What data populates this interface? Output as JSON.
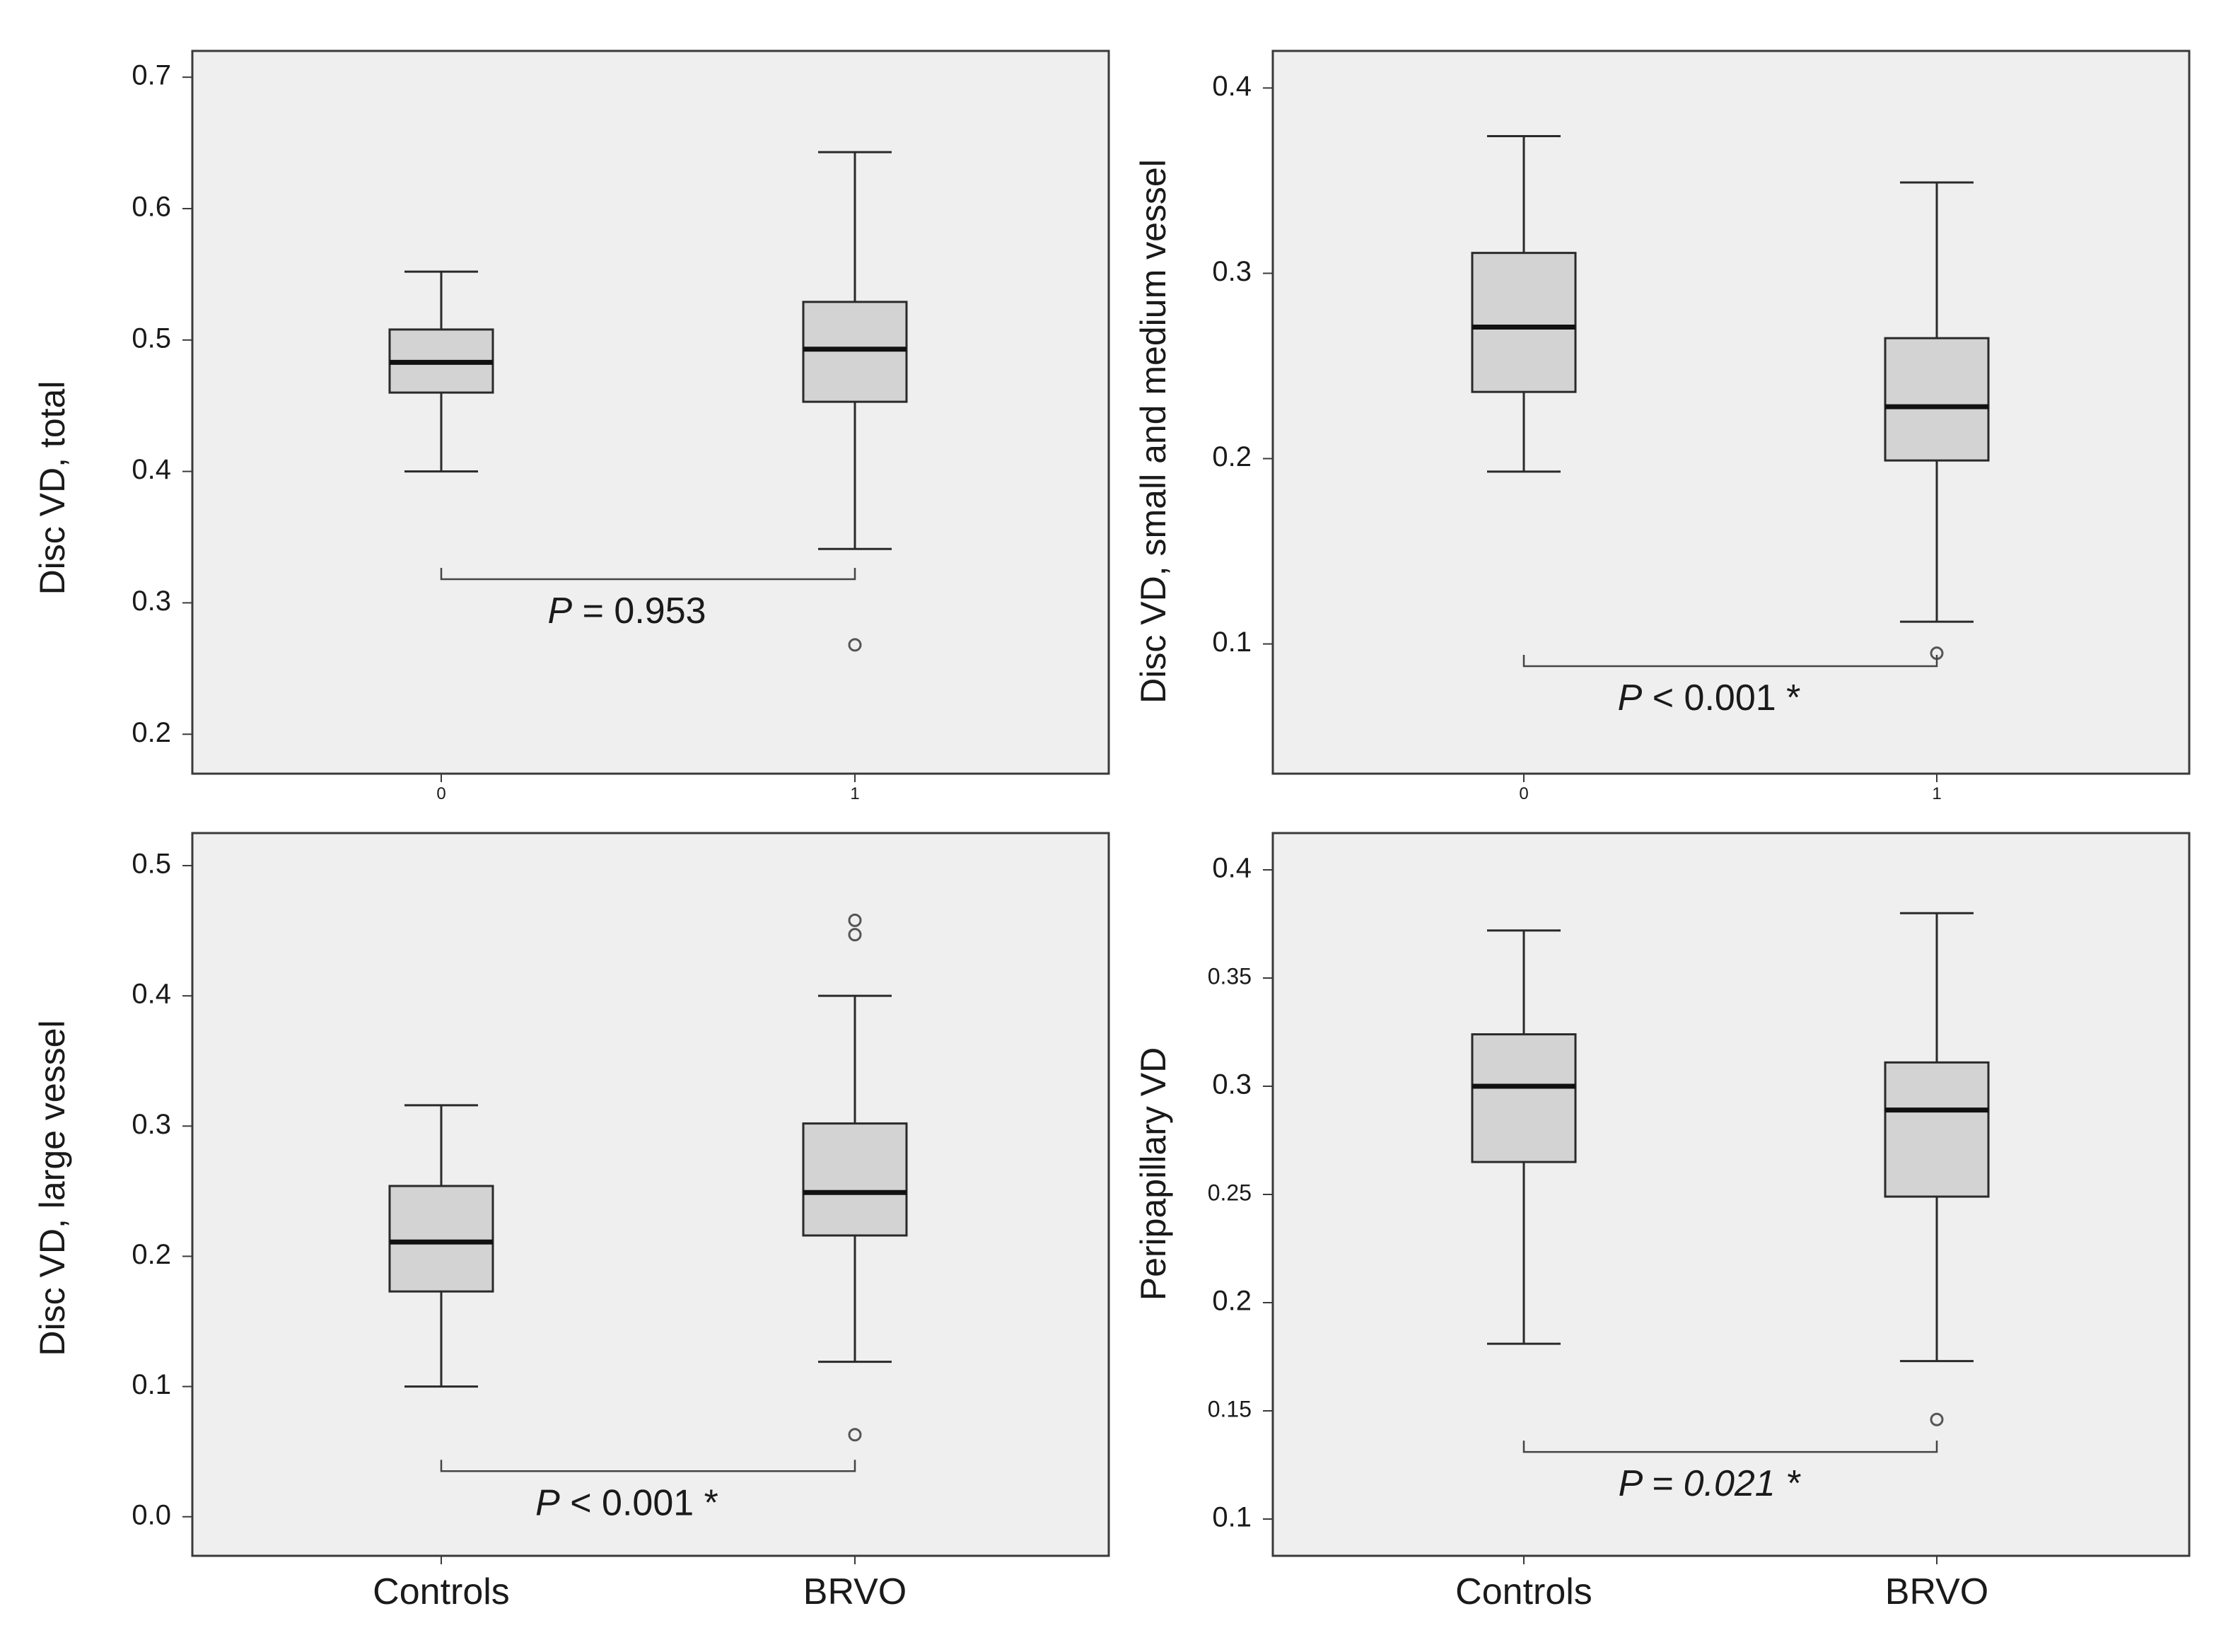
{
  "chart_data": [
    {
      "type": "box",
      "ylabel": "Disc VD, total",
      "categories": [
        "0",
        "1"
      ],
      "category_names": [
        "Controls",
        "BRVO"
      ],
      "ylim": [
        0.17,
        0.72
      ],
      "yticks": [
        0.2,
        0.3,
        0.4,
        0.5,
        0.6,
        0.7
      ],
      "ytick_labels": [
        "0.2",
        "0.3",
        "0.4",
        "0.5",
        "0.6",
        "0.7"
      ],
      "boxes": [
        {
          "group": "Controls",
          "min": 0.4,
          "q1": 0.46,
          "median": 0.483,
          "q3": 0.508,
          "max": 0.552,
          "outliers": []
        },
        {
          "group": "BRVO",
          "min": 0.341,
          "q1": 0.453,
          "median": 0.493,
          "q3": 0.529,
          "max": 0.643,
          "outliers": [
            0.268
          ]
        }
      ],
      "annotation": {
        "italic": "P",
        "rest": " = 0.953",
        "bracket_y": 0.318
      }
    },
    {
      "type": "box",
      "ylabel": "Disc VD, small and medium vessel",
      "categories": [
        "0",
        "1"
      ],
      "category_names": [
        "Controls",
        "BRVO"
      ],
      "ylim": [
        0.03,
        0.42
      ],
      "yticks": [
        0.1,
        0.2,
        0.3,
        0.4
      ],
      "ytick_labels": [
        "0.1",
        "0.2",
        "0.3",
        "0.4"
      ],
      "boxes": [
        {
          "group": "Controls",
          "min": 0.193,
          "q1": 0.236,
          "median": 0.271,
          "q3": 0.311,
          "max": 0.374,
          "outliers": []
        },
        {
          "group": "BRVO",
          "min": 0.112,
          "q1": 0.199,
          "median": 0.228,
          "q3": 0.265,
          "max": 0.349,
          "outliers": [
            0.095
          ]
        }
      ],
      "annotation": {
        "italic": "P",
        "rest": " < 0.001 *",
        "bracket_y": 0.088
      }
    },
    {
      "type": "box",
      "ylabel": "Disc VD, large vessel",
      "categories": [
        "Controls",
        "BRVO"
      ],
      "category_names": [
        "Controls",
        "BRVO"
      ],
      "ylim": [
        -0.03,
        0.525
      ],
      "yticks": [
        0.0,
        0.1,
        0.2,
        0.3,
        0.4,
        0.5
      ],
      "ytick_labels": [
        "0.0",
        "0.1",
        "0.2",
        "0.3",
        "0.4",
        "0.5"
      ],
      "boxes": [
        {
          "group": "Controls",
          "min": 0.1,
          "q1": 0.173,
          "median": 0.211,
          "q3": 0.254,
          "max": 0.316,
          "outliers": []
        },
        {
          "group": "BRVO",
          "min": 0.119,
          "q1": 0.216,
          "median": 0.249,
          "q3": 0.302,
          "max": 0.4,
          "outliers": [
            0.063,
            0.447,
            0.458
          ]
        }
      ],
      "annotation": {
        "italic": "P",
        "rest": " < 0.001 *",
        "bracket_y": 0.035
      }
    },
    {
      "type": "box",
      "ylabel": "Peripapillary VD",
      "categories": [
        "Controls",
        "BRVO"
      ],
      "category_names": [
        "Controls",
        "BRVO"
      ],
      "ylim": [
        0.083,
        0.417
      ],
      "yticks": [
        0.1,
        0.15,
        0.2,
        0.25,
        0.3,
        0.35,
        0.4
      ],
      "ytick_labels": [
        "0.1",
        "0.15",
        "0.2",
        "0.25",
        "0.3",
        "0.35",
        "0.4"
      ],
      "boxes": [
        {
          "group": "Controls",
          "min": 0.181,
          "q1": 0.265,
          "median": 0.3,
          "q3": 0.324,
          "max": 0.372,
          "outliers": []
        },
        {
          "group": "BRVO",
          "min": 0.173,
          "q1": 0.249,
          "median": 0.289,
          "q3": 0.311,
          "max": 0.38,
          "outliers": [
            0.146
          ]
        }
      ],
      "annotation": {
        "italic": "P = 0.021 *",
        "rest": "",
        "bracket_y": 0.131
      }
    }
  ]
}
